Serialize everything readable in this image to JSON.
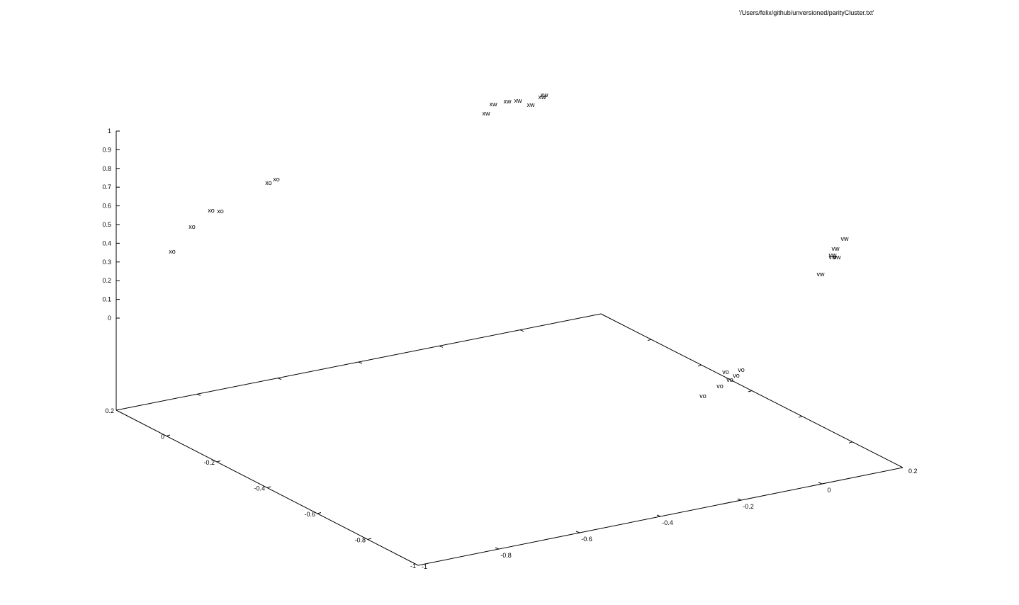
{
  "chart_data": {
    "type": "scatter",
    "projection": "3d",
    "title": "'/Users/felix/github/unversioned/parityCluster.txt'",
    "grid": false,
    "legend": "none",
    "z_ticks": [
      "1",
      "0.9",
      "0.8",
      "0.7",
      "0.6",
      "0.5",
      "0.4",
      "0.3",
      "0.2",
      "0.1",
      "0"
    ],
    "x_ticks": [
      "0.2",
      "0",
      "-0.2",
      "-0.4",
      "-0.6",
      "-0.8",
      "-1"
    ],
    "y_ticks": [
      "-1",
      "-0.8",
      "-0.6",
      "-0.4",
      "-0.2",
      "0",
      "0.2"
    ],
    "points": [
      {
        "label": "xo"
      },
      {
        "label": "xo"
      },
      {
        "label": "xo"
      },
      {
        "label": "xo"
      },
      {
        "label": "xo"
      },
      {
        "label": "xo"
      },
      {
        "label": "xw"
      },
      {
        "label": "xw"
      },
      {
        "label": "xw"
      },
      {
        "label": "xw"
      },
      {
        "label": "xw"
      },
      {
        "label": "xw"
      },
      {
        "label": "xw"
      },
      {
        "label": "vw"
      },
      {
        "label": "vw"
      },
      {
        "label": "vw"
      },
      {
        "label": "vw"
      },
      {
        "label": "vw"
      },
      {
        "label": "vw"
      },
      {
        "label": "vo"
      },
      {
        "label": "vo"
      },
      {
        "label": "vo"
      },
      {
        "label": "vo"
      },
      {
        "label": "vo"
      },
      {
        "label": "vo"
      }
    ],
    "colors": {
      "axis": "#000000",
      "text": "#000000",
      "background": "#ffffff"
    }
  }
}
